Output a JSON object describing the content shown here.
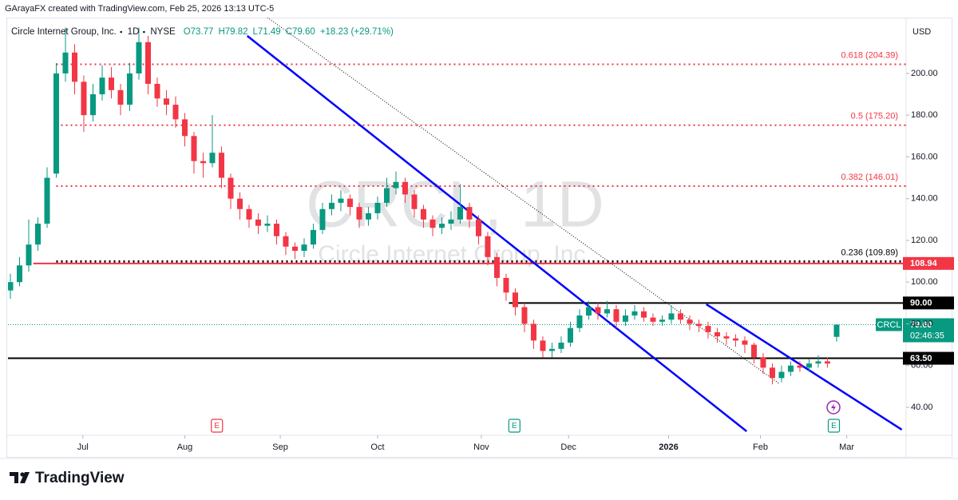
{
  "chart_data": {
    "type": "candlestick",
    "header": "GArayaFX created with TradingView.com, Feb 25, 2026 13:13 UTC-5",
    "title": "Circle Internet Group, Inc.",
    "interval": "1D",
    "exchange": "NYSE",
    "legend_values": [
      "O73.77",
      "H79.82",
      "L71.49",
      "C79.60",
      "+18.23 (+29.71%)"
    ],
    "currency": "USD",
    "watermark": {
      "symbol": "CRCL, 1D",
      "name": "Circle Internet Group, Inc."
    },
    "branding": "TradingView",
    "series": [
      {
        "name": "CRCL",
        "up_color": "#089981",
        "down_color": "#f23645",
        "open": [
          96,
          100,
          108,
          118,
          128,
          152,
          200,
          210,
          196,
          180,
          190,
          198,
          192,
          185,
          200,
          215,
          195,
          188,
          185,
          178,
          170,
          158,
          157,
          162,
          150,
          140,
          135,
          130,
          127,
          128,
          122,
          117,
          115,
          118,
          125,
          135,
          138,
          140,
          136,
          130,
          133,
          138,
          145,
          148,
          142,
          135,
          130,
          126,
          128,
          130,
          136,
          130,
          122,
          112,
          102,
          95,
          88,
          80,
          72,
          67,
          68,
          71,
          78,
          84,
          88,
          85,
          87,
          81,
          84,
          86,
          83,
          81,
          82,
          85,
          82,
          80,
          79,
          76,
          74,
          73,
          72,
          70,
          64,
          59,
          54,
          57,
          60,
          59,
          61,
          62,
          73.77
        ],
        "high": [
          104,
          112,
          130,
          131,
          155,
          205,
          222,
          214,
          199,
          195,
          204,
          203,
          195,
          205,
          222,
          218,
          198,
          192,
          189,
          181,
          172,
          162,
          180,
          165,
          152,
          143,
          137,
          133,
          132,
          130,
          124,
          119,
          121,
          128,
          138,
          142,
          144,
          142,
          138,
          136,
          141,
          150,
          153,
          150,
          144,
          137,
          132,
          131,
          134,
          147,
          138,
          132,
          124,
          114,
          104,
          97,
          90,
          82,
          74,
          71,
          74,
          81,
          87,
          91,
          90,
          91,
          89,
          87,
          89,
          88,
          85,
          84,
          89,
          87,
          84,
          82,
          81,
          78,
          76,
          75,
          74,
          71,
          66,
          61,
          60,
          62,
          62,
          63,
          65,
          64,
          79.82
        ],
        "low": [
          92,
          98,
          105,
          115,
          126,
          150,
          196,
          190,
          172,
          177,
          187,
          188,
          180,
          182,
          197,
          190,
          184,
          180,
          174,
          165,
          152,
          150,
          155,
          145,
          135,
          130,
          126,
          123,
          124,
          118,
          113,
          111,
          112,
          116,
          123,
          132,
          134,
          132,
          126,
          127,
          130,
          136,
          142,
          138,
          131,
          126,
          122,
          123,
          125,
          128,
          126,
          118,
          108,
          98,
          91,
          84,
          76,
          68,
          64,
          64,
          66,
          69,
          76,
          82,
          82,
          83,
          78,
          79,
          82,
          81,
          79,
          79,
          80,
          80,
          77,
          76,
          73,
          71,
          70,
          69,
          66,
          61,
          56,
          51,
          52,
          55,
          57,
          57,
          59,
          59,
          71.49
        ],
        "close": [
          100,
          108,
          118,
          128,
          150,
          200,
          210,
          196,
          180,
          190,
          198,
          192,
          185,
          200,
          215,
          195,
          188,
          185,
          178,
          170,
          158,
          157,
          162,
          150,
          140,
          135,
          130,
          127,
          128,
          122,
          117,
          115,
          118,
          125,
          135,
          138,
          140,
          136,
          130,
          133,
          138,
          145,
          148,
          142,
          135,
          130,
          126,
          128,
          130,
          136,
          130,
          122,
          112,
          102,
          95,
          88,
          80,
          72,
          67,
          68,
          71,
          78,
          84,
          88,
          85,
          87,
          81,
          84,
          86,
          83,
          81,
          82,
          85,
          82,
          80,
          79,
          76,
          74,
          73,
          72,
          70,
          64,
          59,
          54,
          57,
          60,
          59,
          61,
          62,
          61,
          79.6
        ]
      }
    ],
    "last_price": {
      "ticker": "CRCL",
      "value": 79.6,
      "label": "79.60",
      "countdown": "02:46:35",
      "color": "#089981"
    },
    "xlim": [
      -0.26,
      97.57
    ],
    "ylim": [
      28.5,
      223.7
    ],
    "xticks": [
      {
        "value": 7.9,
        "label": "Jul"
      },
      {
        "value": 19,
        "label": "Aug"
      },
      {
        "value": 29.4,
        "label": "Sep"
      },
      {
        "value": 40,
        "label": "Oct"
      },
      {
        "value": 51.3,
        "label": "Nov"
      },
      {
        "value": 60.8,
        "label": "Dec"
      },
      {
        "value": 71.7,
        "label": "2026"
      },
      {
        "value": 81.7,
        "label": "Feb"
      },
      {
        "value": 91.1,
        "label": "Mar"
      }
    ],
    "yticks": [
      {
        "value": 40,
        "label": "40.00"
      },
      {
        "value": 60,
        "label": "60.00"
      },
      {
        "value": 80,
        "label": "80.00"
      },
      {
        "value": 100,
        "label": "100.00"
      },
      {
        "value": 120,
        "label": "120.00"
      },
      {
        "value": 140,
        "label": "140.00"
      },
      {
        "value": 160,
        "label": "160.00"
      },
      {
        "value": 180,
        "label": "180.00"
      },
      {
        "value": 200,
        "label": "200.00"
      }
    ],
    "levels": [
      {
        "label": "0.618 (204.39)",
        "value": 204.39,
        "color": "#f23645",
        "start": 5
      },
      {
        "label": "0.5 (175.20)",
        "value": 175.2,
        "color": "#f23645",
        "start": 5
      },
      {
        "label": "0.382 (146.01)",
        "value": 146.01,
        "color": "#f23645",
        "start": 5
      },
      {
        "label": "0.236 (109.89)",
        "value": 109.89,
        "color": "#000000",
        "start": 5
      }
    ],
    "hlines": [
      {
        "value": 108.94,
        "label": "108.94",
        "color": "#f23645",
        "start": 2.5
      },
      {
        "value": 90,
        "label": "90.00",
        "color": "#000000",
        "start": 54.3
      },
      {
        "value": 63.5,
        "label": "63.50",
        "color": "#000000",
        "start": -0.26
      }
    ],
    "trendlines": [
      {
        "color": "#0000ff",
        "style": "solid",
        "x": [
          25.8,
          80.2
        ],
        "y": [
          218,
          28.5
        ]
      },
      {
        "color": "#0000ff",
        "style": "solid",
        "x": [
          75.8,
          97.1
        ],
        "y": [
          89.4,
          29.3
        ]
      },
      {
        "color": "#000000",
        "style": "dotted",
        "x": [
          28,
          83.7
        ],
        "y": [
          226.8,
          51.5
        ]
      }
    ],
    "events": [
      {
        "label": "E",
        "color": "#f23645",
        "x": 22.5
      },
      {
        "label": "E",
        "color": "#089981",
        "x": 54.9
      },
      {
        "label": "E",
        "color": "#089981",
        "x": 89.7
      }
    ]
  }
}
